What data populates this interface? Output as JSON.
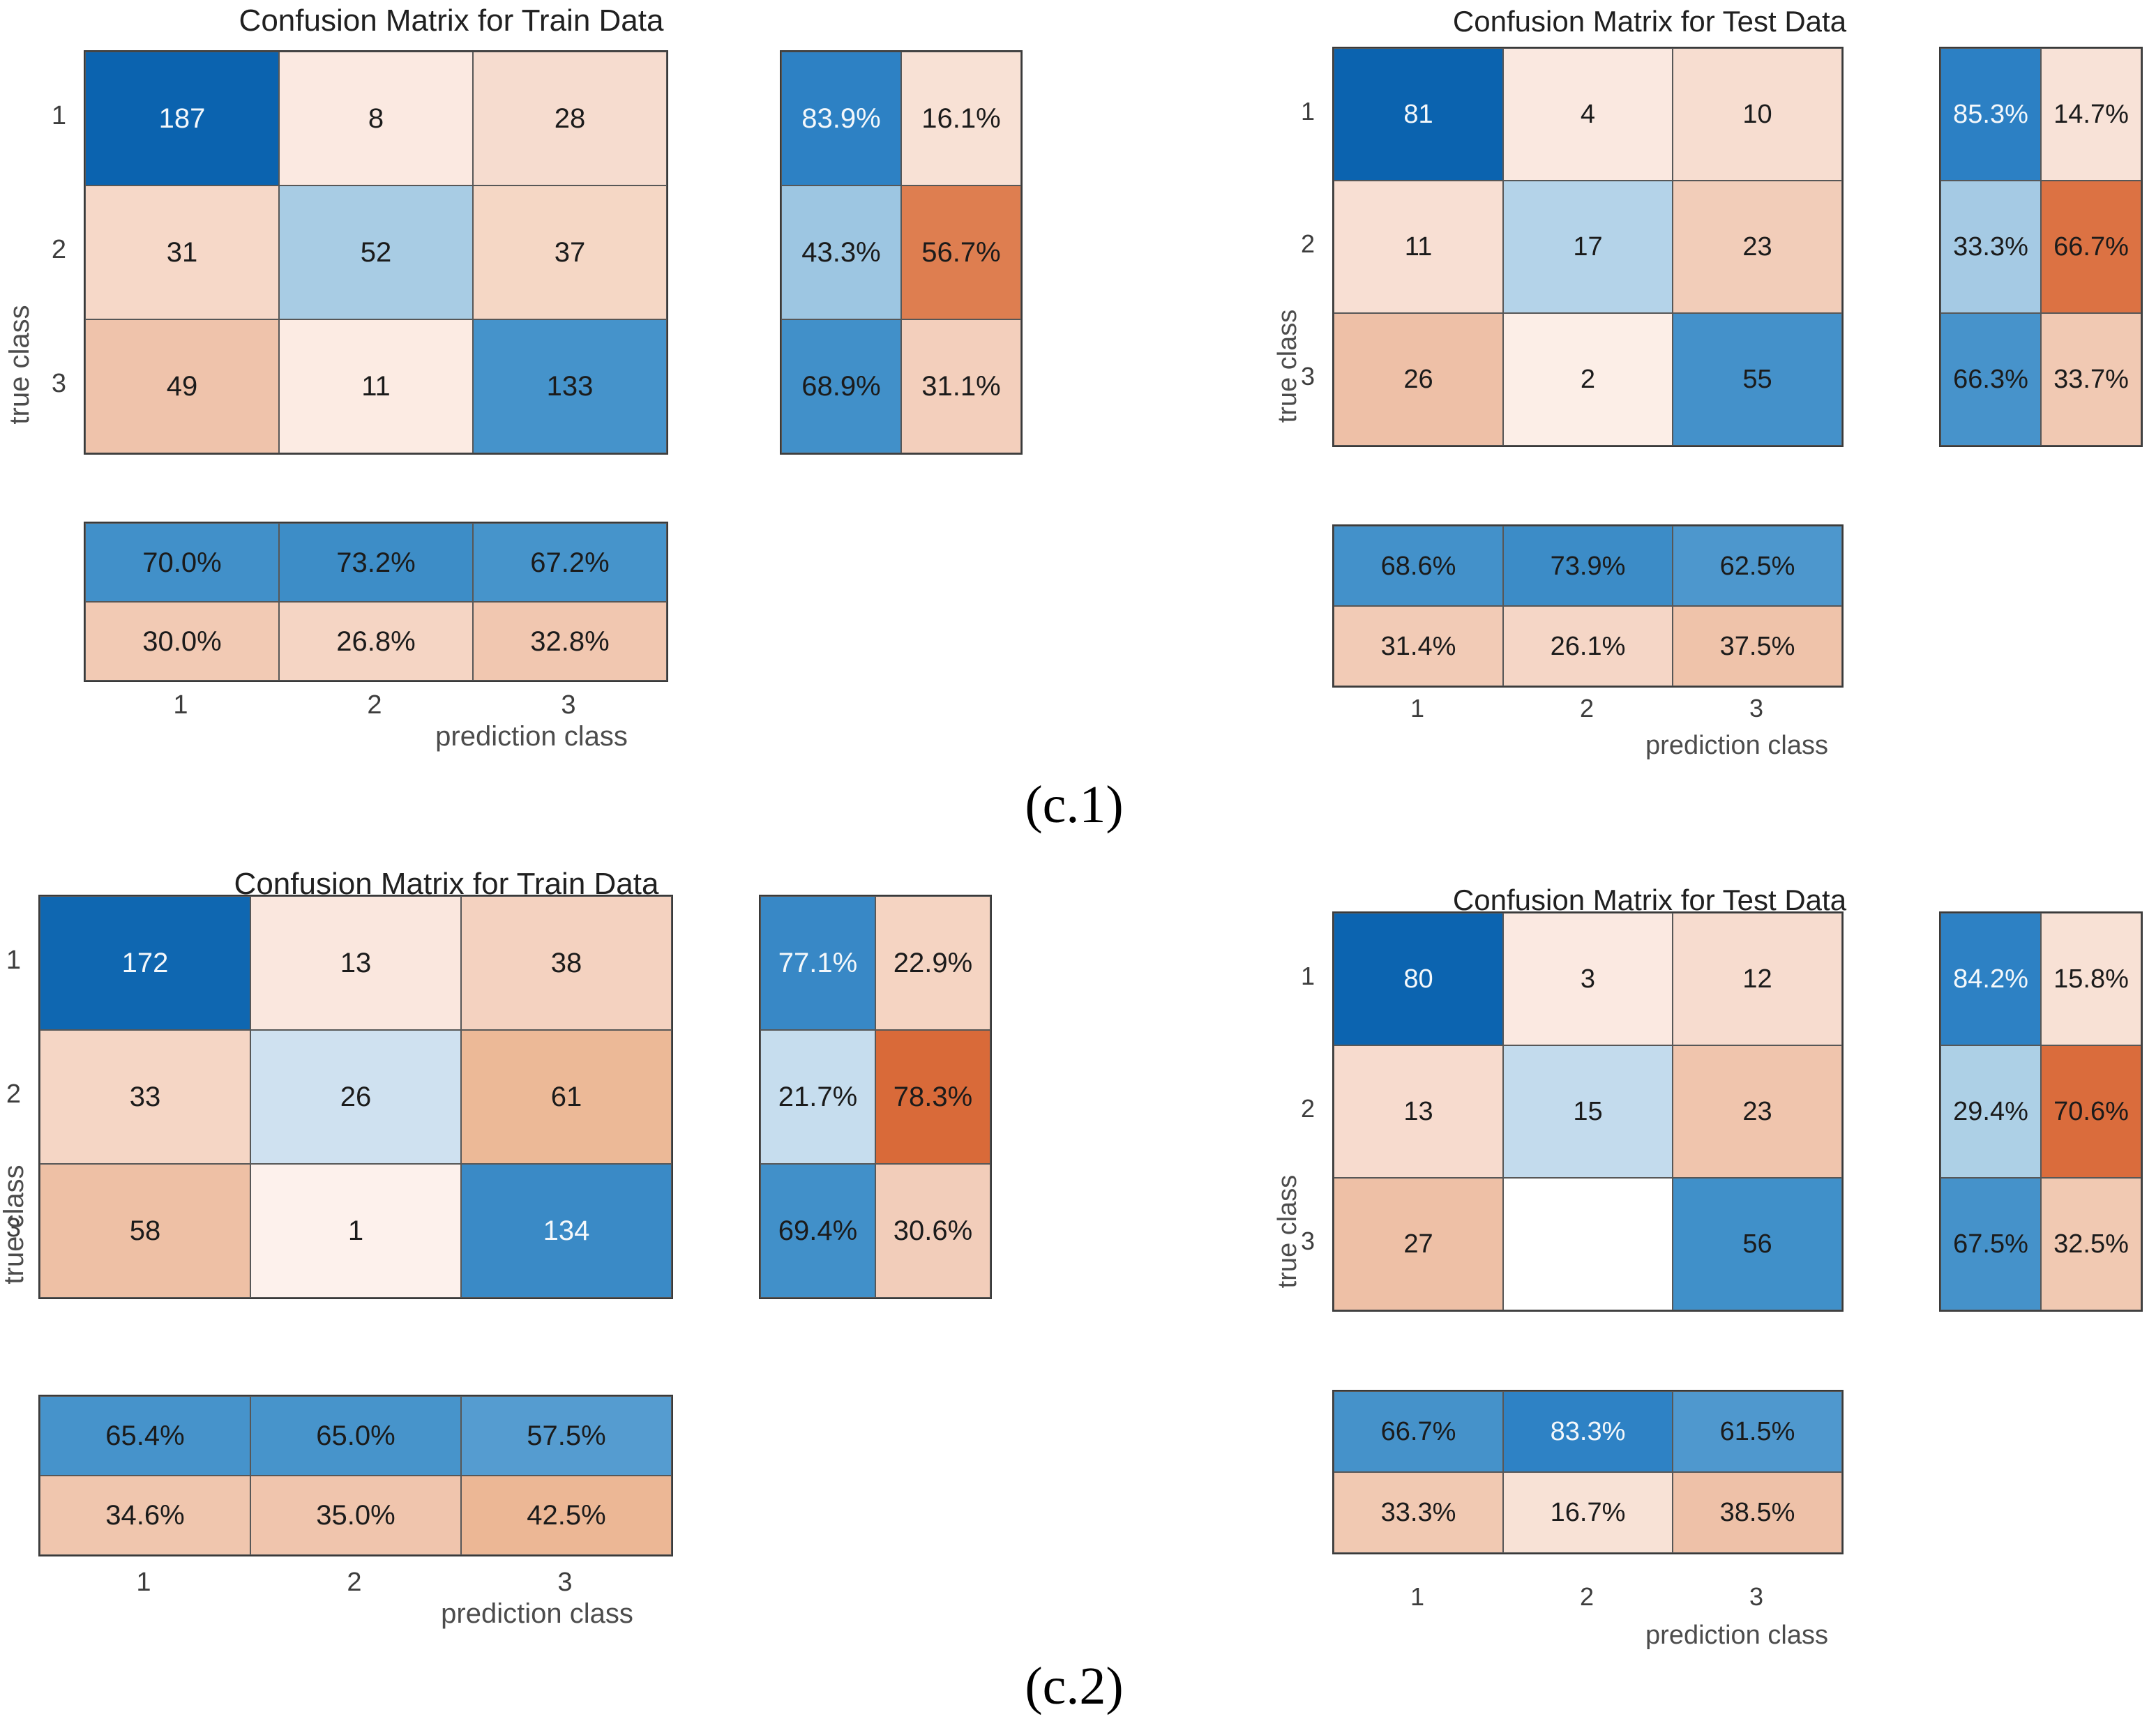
{
  "figure": {
    "captions": {
      "c1": "(c.1)",
      "c2": "(c.2)"
    },
    "x_axis_label": "prediction class",
    "y_axis_label": "true class",
    "class_labels": [
      "1",
      "2",
      "3"
    ]
  },
  "chart_data": [
    {
      "id": "c1-train",
      "type": "heatmap",
      "title": "Confusion Matrix for Train Data",
      "xlabel": "prediction class",
      "ylabel": "true class",
      "classes": [
        "1",
        "2",
        "3"
      ],
      "matrix": [
        [
          "187",
          "8",
          "28"
        ],
        [
          "31",
          "52",
          "37"
        ],
        [
          "49",
          "11",
          "133"
        ]
      ],
      "row_normalized_pct": [
        [
          "83.9%",
          "16.1%"
        ],
        [
          "43.3%",
          "56.7%"
        ],
        [
          "68.9%",
          "31.1%"
        ]
      ],
      "col_normalized_pct": [
        [
          "70.0%",
          "73.2%",
          "67.2%"
        ],
        [
          "30.0%",
          "26.8%",
          "32.8%"
        ]
      ],
      "colors": {
        "matrix": [
          [
            "#0b63af",
            "#fbe9e1",
            "#f6dccf"
          ],
          [
            "#f6d8c8",
            "#a8cce4",
            "#f5d7c5"
          ],
          [
            "#efc3ab",
            "#fcebe3",
            "#4593cb"
          ]
        ],
        "row_summary": [
          [
            "#2d81c4",
            "#f8e1d5"
          ],
          [
            "#9dc6e2",
            "#de7e50"
          ],
          [
            "#4190c9",
            "#f3cfbc"
          ]
        ],
        "col_summary": [
          [
            "#4190c9",
            "#3d8dc7",
            "#4694cb"
          ],
          [
            "#f2cab4",
            "#f5d5c4",
            "#f1c7b0"
          ]
        ]
      },
      "text_tone": {
        "matrix": [
          [
            "w",
            "d",
            "d"
          ],
          [
            "d",
            "d",
            "d"
          ],
          [
            "d",
            "d",
            "d"
          ]
        ],
        "row_summary": [
          [
            "w",
            "d"
          ],
          [
            "d",
            "d"
          ],
          [
            "d",
            "d"
          ]
        ],
        "col_summary": [
          [
            "d",
            "d",
            "d"
          ],
          [
            "d",
            "d",
            "d"
          ]
        ]
      }
    },
    {
      "id": "c1-test",
      "type": "heatmap",
      "title": "Confusion Matrix for Test Data",
      "xlabel": "prediction class",
      "ylabel": "true class",
      "classes": [
        "1",
        "2",
        "3"
      ],
      "matrix": [
        [
          "81",
          "4",
          "10"
        ],
        [
          "11",
          "17",
          "23"
        ],
        [
          "26",
          "2",
          "55"
        ]
      ],
      "row_normalized_pct": [
        [
          "85.3%",
          "14.7%"
        ],
        [
          "33.3%",
          "66.7%"
        ],
        [
          "66.3%",
          "33.7%"
        ]
      ],
      "col_normalized_pct": [
        [
          "68.6%",
          "73.9%",
          "62.5%"
        ],
        [
          "31.4%",
          "26.1%",
          "37.5%"
        ]
      ],
      "colors": {
        "matrix": [
          [
            "#0b63af",
            "#fae8e0",
            "#f7ddd0"
          ],
          [
            "#f8dfd3",
            "#b4d3e9",
            "#f2cdb9"
          ],
          [
            "#eec0a7",
            "#fceee7",
            "#4491ca"
          ]
        ],
        "row_summary": [
          [
            "#2c80c4",
            "#f8e2d7"
          ],
          [
            "#a5cae4",
            "#dc7243"
          ],
          [
            "#4793cb",
            "#f1c9b3"
          ]
        ],
        "col_summary": [
          [
            "#4391ca",
            "#3c8cc7",
            "#4d97cd"
          ],
          [
            "#f2cbb6",
            "#f5d6c6",
            "#efc3aa"
          ]
        ]
      },
      "text_tone": {
        "matrix": [
          [
            "w",
            "d",
            "d"
          ],
          [
            "d",
            "d",
            "d"
          ],
          [
            "d",
            "d",
            "d"
          ]
        ],
        "row_summary": [
          [
            "w",
            "d"
          ],
          [
            "d",
            "d"
          ],
          [
            "d",
            "d"
          ]
        ],
        "col_summary": [
          [
            "d",
            "d",
            "d"
          ],
          [
            "d",
            "d",
            "d"
          ]
        ]
      }
    },
    {
      "id": "c2-train",
      "type": "heatmap",
      "title": "Confusion Matrix for Train Data",
      "xlabel": "prediction class",
      "ylabel": "true class",
      "classes": [
        "1",
        "2",
        "3"
      ],
      "matrix": [
        [
          "172",
          "13",
          "38"
        ],
        [
          "33",
          "26",
          "61"
        ],
        [
          "58",
          "1",
          "134"
        ]
      ],
      "row_normalized_pct": [
        [
          "77.1%",
          "22.9%"
        ],
        [
          "21.7%",
          "78.3%"
        ],
        [
          "69.4%",
          "30.6%"
        ]
      ],
      "col_normalized_pct": [
        [
          "65.4%",
          "65.0%",
          "57.5%"
        ],
        [
          "34.6%",
          "35.0%",
          "42.5%"
        ]
      ],
      "colors": {
        "matrix": [
          [
            "#0f67b1",
            "#fae7de",
            "#f4d2c0"
          ],
          [
            "#f5d6c5",
            "#cfe1f0",
            "#ecb997"
          ],
          [
            "#eec0a5",
            "#fdf1ec",
            "#3a8ac6"
          ]
        ],
        "row_summary": [
          [
            "#3888c6",
            "#f5d4c2"
          ],
          [
            "#c6ddee",
            "#d96a39"
          ],
          [
            "#4190c9",
            "#f2cdba"
          ]
        ],
        "col_summary": [
          [
            "#4693cb",
            "#4794cb",
            "#559cd0"
          ],
          [
            "#f0c6ae",
            "#f0c5ad",
            "#ecb795"
          ]
        ]
      },
      "text_tone": {
        "matrix": [
          [
            "w",
            "d",
            "d"
          ],
          [
            "d",
            "d",
            "d"
          ],
          [
            "d",
            "d",
            "w"
          ]
        ],
        "row_summary": [
          [
            "w",
            "d"
          ],
          [
            "d",
            "d"
          ],
          [
            "d",
            "d"
          ]
        ],
        "col_summary": [
          [
            "d",
            "d",
            "d"
          ],
          [
            "d",
            "d",
            "d"
          ]
        ]
      }
    },
    {
      "id": "c2-test",
      "type": "heatmap",
      "title": "Confusion Matrix for Test Data",
      "xlabel": "prediction class",
      "ylabel": "true class",
      "classes": [
        "1",
        "2",
        "3"
      ],
      "matrix": [
        [
          "80",
          "3",
          "12"
        ],
        [
          "13",
          "15",
          "23"
        ],
        [
          "27",
          "",
          "56"
        ]
      ],
      "row_normalized_pct": [
        [
          "84.2%",
          "15.8%"
        ],
        [
          "29.4%",
          "70.6%"
        ],
        [
          "67.5%",
          "32.5%"
        ]
      ],
      "col_normalized_pct": [
        [
          "66.7%",
          "83.3%",
          "61.5%"
        ],
        [
          "33.3%",
          "16.7%",
          "38.5%"
        ]
      ],
      "colors": {
        "matrix": [
          [
            "#0c64b0",
            "#fbe9e1",
            "#f7dccf"
          ],
          [
            "#f7dbce",
            "#c3dbed",
            "#f0c5ad"
          ],
          [
            "#eec0a6",
            "#ffffff",
            "#4090c9"
          ]
        ],
        "row_summary": [
          [
            "#2d81c4",
            "#f8e1d5"
          ],
          [
            "#add0e6",
            "#da6c3c"
          ],
          [
            "#4592ca",
            "#f1c9b2"
          ]
        ],
        "col_summary": [
          [
            "#4592ca",
            "#2e82c5",
            "#4f98ce"
          ],
          [
            "#f1c9b2",
            "#f8e2d6",
            "#eec1a8"
          ]
        ]
      },
      "text_tone": {
        "matrix": [
          [
            "w",
            "d",
            "d"
          ],
          [
            "d",
            "d",
            "d"
          ],
          [
            "d",
            "d",
            "d"
          ]
        ],
        "row_summary": [
          [
            "w",
            "d"
          ],
          [
            "d",
            "d"
          ],
          [
            "d",
            "d"
          ]
        ],
        "col_summary": [
          [
            "d",
            "w",
            "d"
          ],
          [
            "d",
            "d",
            "d"
          ]
        ]
      }
    }
  ]
}
